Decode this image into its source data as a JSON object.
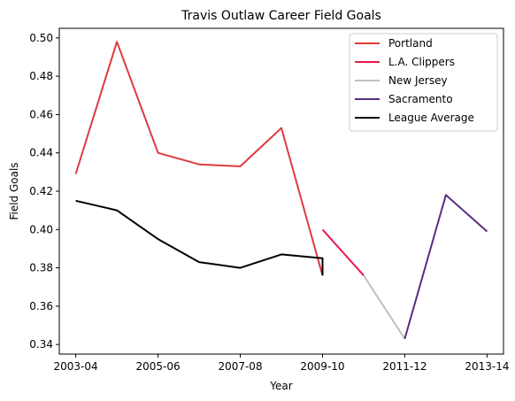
{
  "chart_data": {
    "type": "line",
    "title": "Travis Outlaw Career Field Goals",
    "xlabel": "Year",
    "ylabel": "Field Goals",
    "x_ticks": [
      "2003-04",
      "2005-06",
      "2007-08",
      "2009-10",
      "2011-12",
      "2013-14"
    ],
    "x_tick_positions": [
      2003,
      2005,
      2007,
      2009,
      2011,
      2013
    ],
    "xlim": [
      2002.6,
      2013.4
    ],
    "ylim": [
      0.335,
      0.505
    ],
    "y_ticks": [
      0.34,
      0.36,
      0.38,
      0.4,
      0.42,
      0.44,
      0.46,
      0.48,
      0.5
    ],
    "y_tick_labels": [
      "0.34",
      "0.36",
      "0.38",
      "0.40",
      "0.42",
      "0.44",
      "0.46",
      "0.48",
      "0.50"
    ],
    "grid": false,
    "legend_position": "top-right",
    "series": [
      {
        "name": "Portland",
        "color": "#e03a3e",
        "x": [
          2003,
          2004,
          2005,
          2006,
          2007,
          2008,
          2009
        ],
        "y": [
          0.429,
          0.498,
          0.44,
          0.434,
          0.433,
          0.453,
          0.376
        ]
      },
      {
        "name": "L.A. Clippers",
        "color": "#ed174c",
        "x": [
          2009,
          2010
        ],
        "y": [
          0.4,
          0.376
        ]
      },
      {
        "name": "New Jersey",
        "color": "#bec0c2",
        "x": [
          2010,
          2011
        ],
        "y": [
          0.376,
          0.343
        ]
      },
      {
        "name": "Sacramento",
        "color": "#5a2d81",
        "x": [
          2011,
          2012,
          2013
        ],
        "y": [
          0.343,
          0.418,
          0.399
        ]
      },
      {
        "name": "League Average",
        "color": "#000000",
        "x": [
          2003,
          2004,
          2005,
          2006,
          2007,
          2008,
          2009,
          2009
        ],
        "y": [
          0.415,
          0.41,
          0.395,
          0.383,
          0.38,
          0.387,
          0.385,
          0.376
        ]
      }
    ]
  }
}
